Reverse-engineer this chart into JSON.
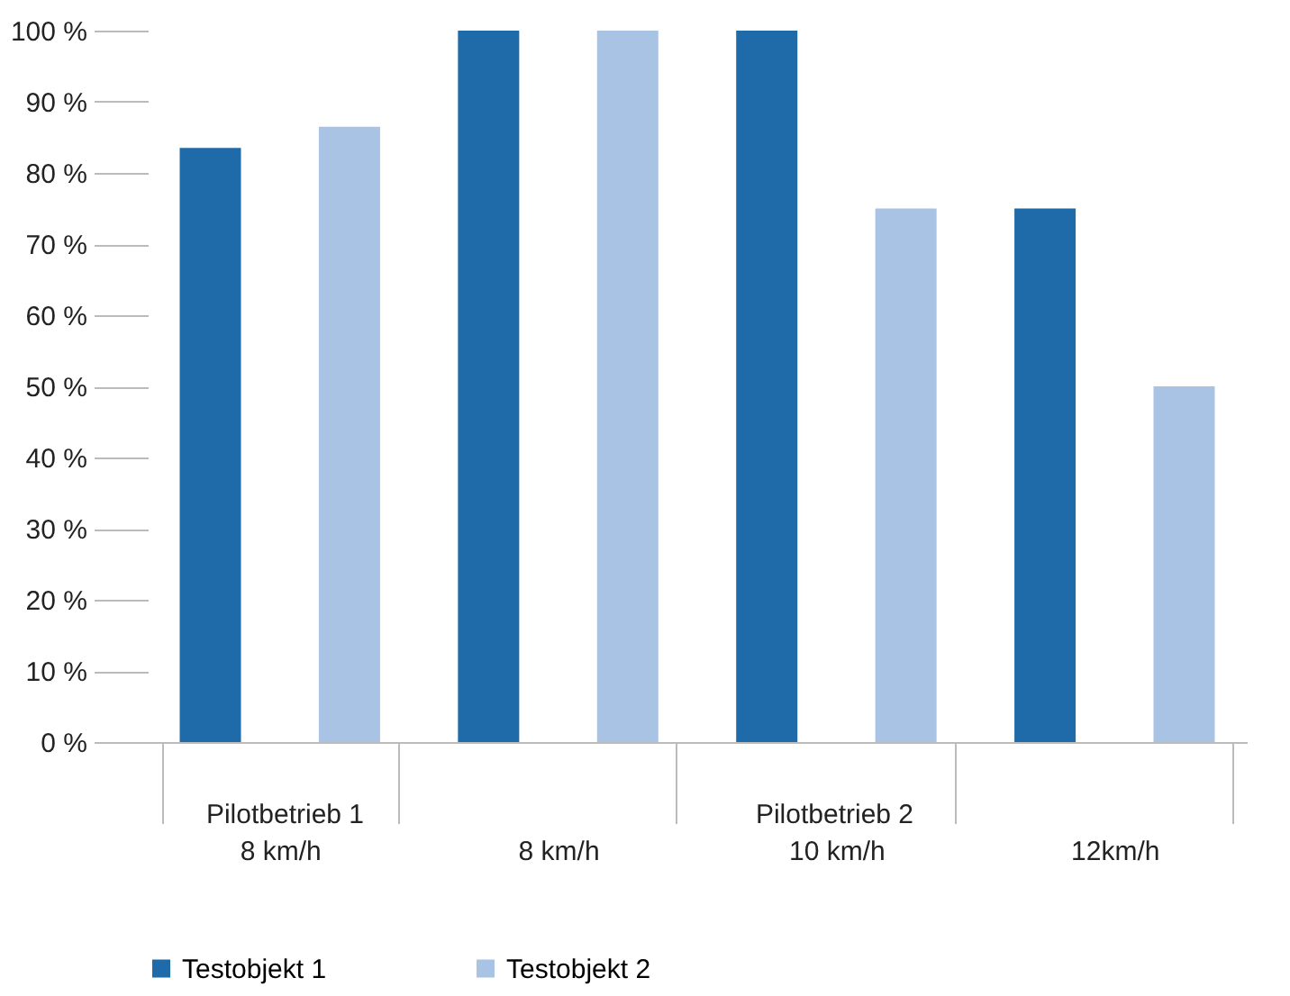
{
  "chart_data": {
    "type": "bar",
    "categories": [
      "8 km/h",
      "8 km/h",
      "10 km/h",
      "12km/h"
    ],
    "series": [
      {
        "name": "Testobjekt 1",
        "color": "#1f6aa8",
        "values": [
          83.5,
          100,
          100,
          75
        ]
      },
      {
        "name": "Testobjekt 2",
        "color": "#a9c3e5",
        "values": [
          86.5,
          100,
          75,
          50
        ]
      }
    ],
    "ylim": [
      0,
      100
    ],
    "yticks": [
      {
        "value": 0,
        "label": "0 %"
      },
      {
        "value": 10,
        "label": "10 %"
      },
      {
        "value": 20,
        "label": "20 %"
      },
      {
        "value": 30,
        "label": "30 %"
      },
      {
        "value": 40,
        "label": "40 %"
      },
      {
        "value": 50,
        "label": "50 %"
      },
      {
        "value": 60,
        "label": "60 %"
      },
      {
        "value": 70,
        "label": "70 %"
      },
      {
        "value": 80,
        "label": "80 %"
      },
      {
        "value": 90,
        "label": "90 %"
      },
      {
        "value": 100,
        "label": "100 %"
      }
    ],
    "annotations": [
      "Pilotbetrieb 1",
      "Pilotbetrieb 2"
    ],
    "grid": false,
    "legend": "bottom"
  }
}
